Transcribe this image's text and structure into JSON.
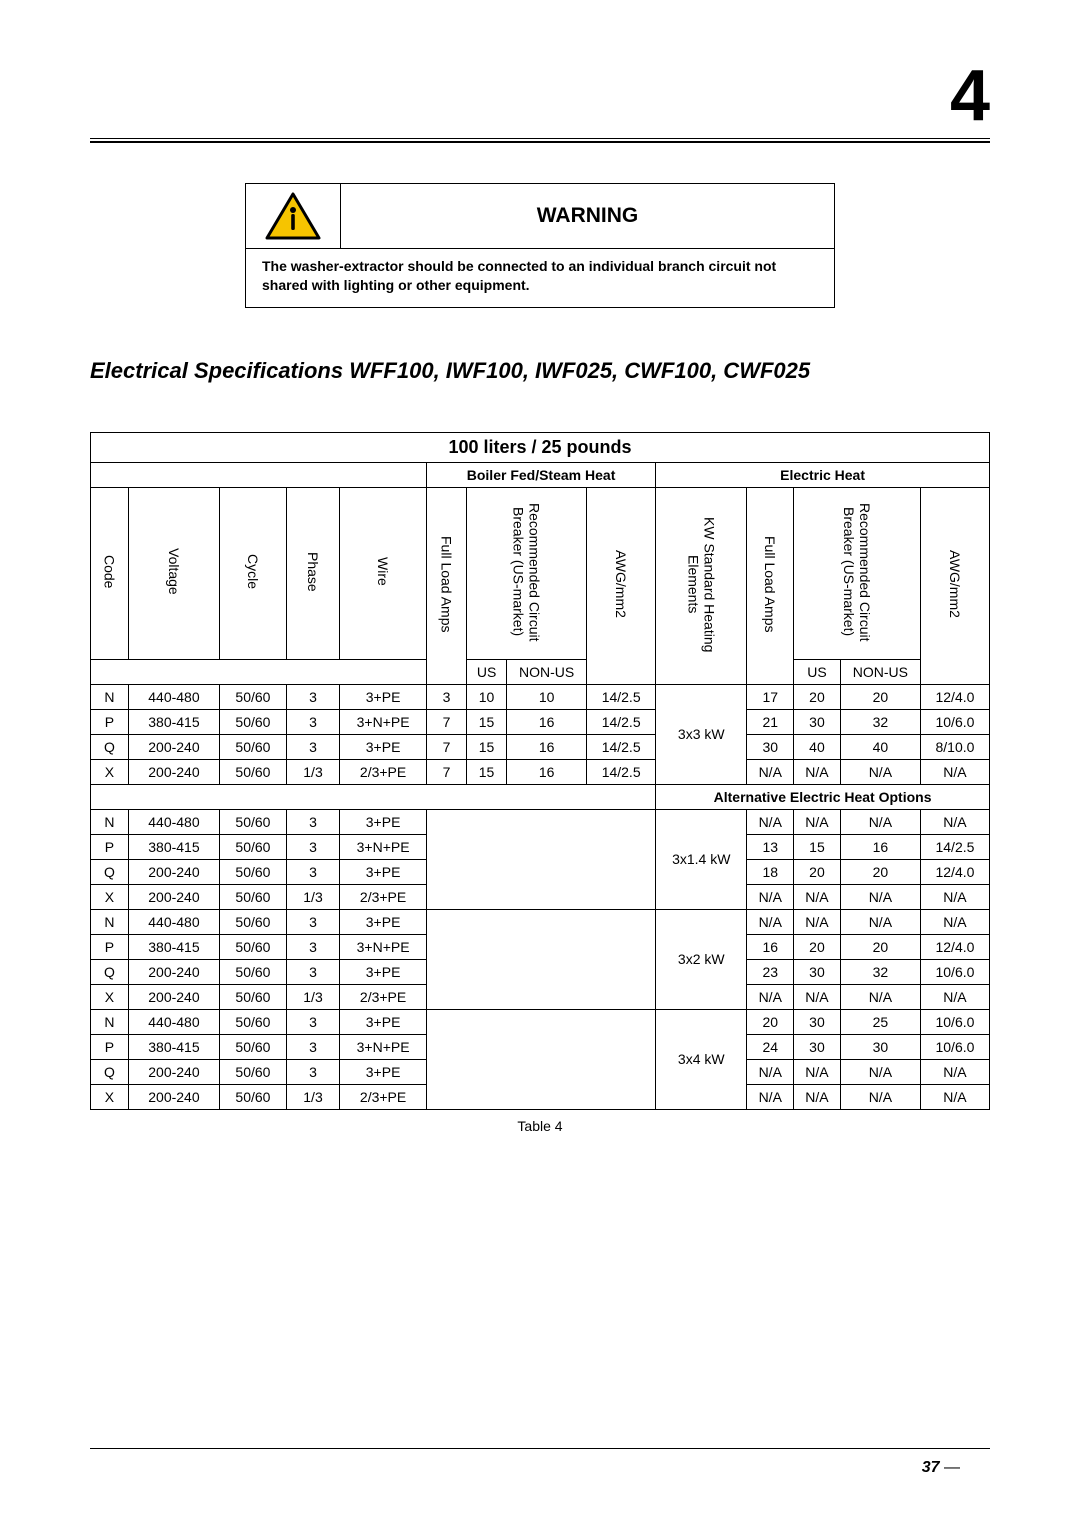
{
  "chapter_number": "4",
  "warning": {
    "title": "WARNING",
    "body": "The washer-extractor should be connected to an individual branch circuit not shared with lighting or other equipment.",
    "icon_colors": {
      "triangle_fill": "#f6c400",
      "stroke": "#000000"
    }
  },
  "section_title": "Electrical Specifications WFF100, IWF100, IWF025, CWF100, CWF025",
  "table": {
    "title": "100 liters / 25 pounds",
    "group_headers": {
      "boiler": "Boiler Fed/Steam Heat",
      "electric": "Electric Heat"
    },
    "row_headers": {
      "code": "Code",
      "voltage": "Voltage",
      "cycle": "Cycle",
      "phase": "Phase",
      "wire": "Wire",
      "fla": "Full Load Amps",
      "breaker": "Recommended Circuit Breaker (US-market)",
      "awg": "AWG/mm2",
      "kw": "KW Standard Heating Elements",
      "fla2": "Full Load Amps",
      "breaker2": "Recommended Circuit Breaker (US-market)",
      "awg2": "AWG/mm2"
    },
    "sub_headers": {
      "us": "US",
      "nonus": "NON-US"
    },
    "alt_header": "Alternative Electric Heat Options",
    "kw_labels": {
      "kw3x3": "3x3 kW",
      "kw3x14": "3x1.4 kW",
      "kw3x2": "3x2 kW",
      "kw3x4": "3x4 kW"
    },
    "caption": "Table 4",
    "section1_rows": [
      {
        "code": "N",
        "voltage": "440-480",
        "cycle": "50/60",
        "phase": "3",
        "wire": "3+PE",
        "fla": "3",
        "us": "10",
        "nonus": "10",
        "awg": "14/2.5",
        "fla2": "17",
        "us2": "20",
        "nonus2": "20",
        "awg2": "12/4.0"
      },
      {
        "code": "P",
        "voltage": "380-415",
        "cycle": "50/60",
        "phase": "3",
        "wire": "3+N+PE",
        "fla": "7",
        "us": "15",
        "nonus": "16",
        "awg": "14/2.5",
        "fla2": "21",
        "us2": "30",
        "nonus2": "32",
        "awg2": "10/6.0"
      },
      {
        "code": "Q",
        "voltage": "200-240",
        "cycle": "50/60",
        "phase": "3",
        "wire": "3+PE",
        "fla": "7",
        "us": "15",
        "nonus": "16",
        "awg": "14/2.5",
        "fla2": "30",
        "us2": "40",
        "nonus2": "40",
        "awg2": "8/10.0"
      },
      {
        "code": "X",
        "voltage": "200-240",
        "cycle": "50/60",
        "phase": "1/3",
        "wire": "2/3+PE",
        "fla": "7",
        "us": "15",
        "nonus": "16",
        "awg": "14/2.5",
        "fla2": "N/A",
        "us2": "N/A",
        "nonus2": "N/A",
        "awg2": "N/A"
      }
    ],
    "alt_sections": [
      {
        "kw_key": "kw3x14",
        "rows": [
          {
            "code": "N",
            "voltage": "440-480",
            "cycle": "50/60",
            "phase": "3",
            "wire": "3+PE",
            "fla2": "N/A",
            "us2": "N/A",
            "nonus2": "N/A",
            "awg2": "N/A"
          },
          {
            "code": "P",
            "voltage": "380-415",
            "cycle": "50/60",
            "phase": "3",
            "wire": "3+N+PE",
            "fla2": "13",
            "us2": "15",
            "nonus2": "16",
            "awg2": "14/2.5"
          },
          {
            "code": "Q",
            "voltage": "200-240",
            "cycle": "50/60",
            "phase": "3",
            "wire": "3+PE",
            "fla2": "18",
            "us2": "20",
            "nonus2": "20",
            "awg2": "12/4.0"
          },
          {
            "code": "X",
            "voltage": "200-240",
            "cycle": "50/60",
            "phase": "1/3",
            "wire": "2/3+PE",
            "fla2": "N/A",
            "us2": "N/A",
            "nonus2": "N/A",
            "awg2": "N/A"
          }
        ]
      },
      {
        "kw_key": "kw3x2",
        "rows": [
          {
            "code": "N",
            "voltage": "440-480",
            "cycle": "50/60",
            "phase": "3",
            "wire": "3+PE",
            "fla2": "N/A",
            "us2": "N/A",
            "nonus2": "N/A",
            "awg2": "N/A"
          },
          {
            "code": "P",
            "voltage": "380-415",
            "cycle": "50/60",
            "phase": "3",
            "wire": "3+N+PE",
            "fla2": "16",
            "us2": "20",
            "nonus2": "20",
            "awg2": "12/4.0"
          },
          {
            "code": "Q",
            "voltage": "200-240",
            "cycle": "50/60",
            "phase": "3",
            "wire": "3+PE",
            "fla2": "23",
            "us2": "30",
            "nonus2": "32",
            "awg2": "10/6.0"
          },
          {
            "code": "X",
            "voltage": "200-240",
            "cycle": "50/60",
            "phase": "1/3",
            "wire": "2/3+PE",
            "fla2": "N/A",
            "us2": "N/A",
            "nonus2": "N/A",
            "awg2": "N/A"
          }
        ]
      },
      {
        "kw_key": "kw3x4",
        "rows": [
          {
            "code": "N",
            "voltage": "440-480",
            "cycle": "50/60",
            "phase": "3",
            "wire": "3+PE",
            "fla2": "20",
            "us2": "30",
            "nonus2": "25",
            "awg2": "10/6.0"
          },
          {
            "code": "P",
            "voltage": "380-415",
            "cycle": "50/60",
            "phase": "3",
            "wire": "3+N+PE",
            "fla2": "24",
            "us2": "30",
            "nonus2": "30",
            "awg2": "10/6.0"
          },
          {
            "code": "Q",
            "voltage": "200-240",
            "cycle": "50/60",
            "phase": "3",
            "wire": "3+PE",
            "fla2": "N/A",
            "us2": "N/A",
            "nonus2": "N/A",
            "awg2": "N/A"
          },
          {
            "code": "X",
            "voltage": "200-240",
            "cycle": "50/60",
            "phase": "1/3",
            "wire": "2/3+PE",
            "fla2": "N/A",
            "us2": "N/A",
            "nonus2": "N/A",
            "awg2": "N/A"
          }
        ]
      }
    ]
  },
  "page_number": "37"
}
